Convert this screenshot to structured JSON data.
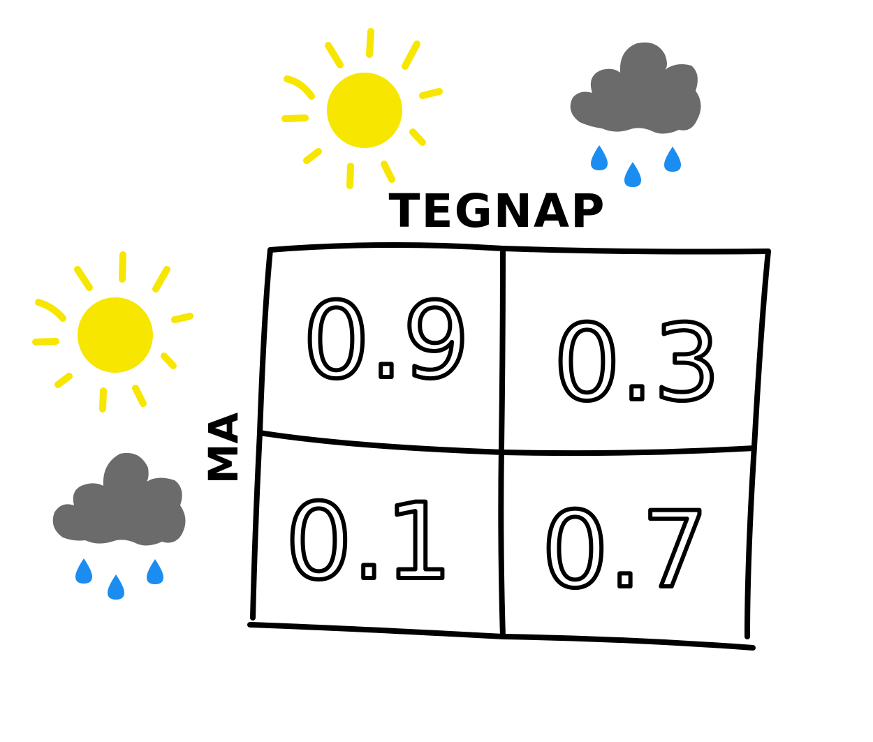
{
  "header": {
    "column_label": "TEGNAP",
    "row_label": "MA"
  },
  "matrix": {
    "cells": [
      {
        "value": "0.9"
      },
      {
        "value": "0.3"
      },
      {
        "value": "0.1"
      },
      {
        "value": "0.7"
      }
    ]
  },
  "icons": {
    "column_sunny": "sun-icon",
    "column_rainy": "rain-cloud-icon",
    "row_sunny": "sun-icon",
    "row_rainy": "rain-cloud-icon"
  },
  "colors": {
    "sun": "#f7e600",
    "cloud": "#6b6b6b",
    "raindrop": "#1b8cf0",
    "ink": "#000000"
  }
}
